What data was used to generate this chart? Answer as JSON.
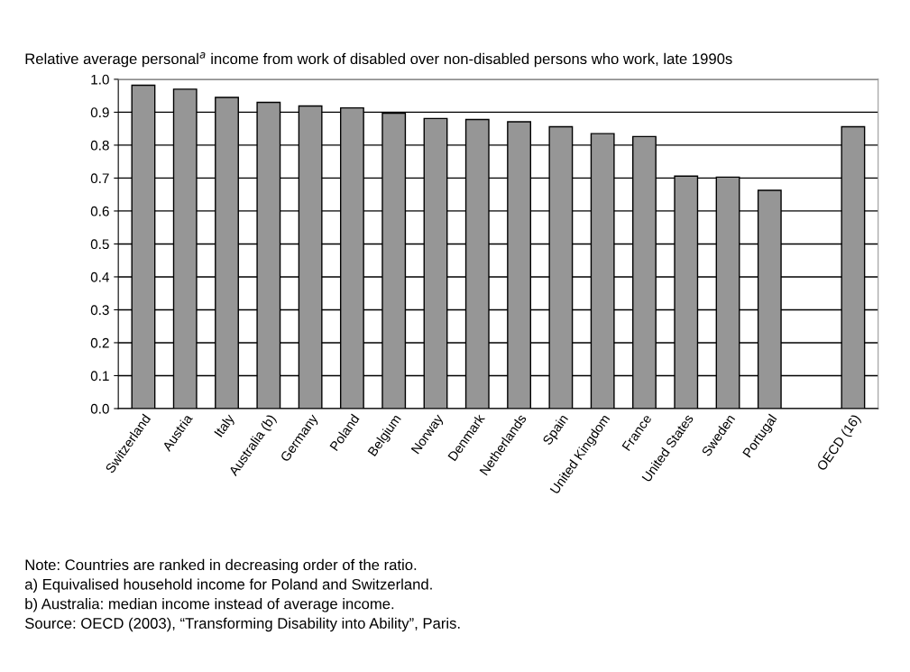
{
  "chart_data": {
    "type": "bar",
    "title": "Relative average personal$^{a}$ income from work of disabled over non-disabled persons who work, late 1990s",
    "categories": [
      "Switzerland",
      "Austria",
      "Italy",
      "Australia (b)",
      "Germany",
      "Poland",
      "Belgium",
      "Norway",
      "Denmark",
      "Netherlands",
      "Spain",
      "United Kingdom",
      "France",
      "United States",
      "Sweden",
      "Portugal",
      null,
      "OECD (16)"
    ],
    "values": [
      0.982,
      0.97,
      0.945,
      0.93,
      0.919,
      0.913,
      0.897,
      0.881,
      0.878,
      0.871,
      0.856,
      0.835,
      0.826,
      0.706,
      0.703,
      0.663,
      null,
      0.856
    ],
    "color": "#969696",
    "ylim": [
      0,
      1
    ],
    "yticks": [
      {
        "value": 0,
        "label": "0.0"
      },
      {
        "value": 0.1,
        "label": "0.1"
      },
      {
        "value": 0.2,
        "label": "0.2"
      },
      {
        "value": 0.3,
        "label": "0.3"
      },
      {
        "value": 0.4,
        "label": "0.4"
      },
      {
        "value": 0.5,
        "label": "0.5"
      },
      {
        "value": 0.6,
        "label": "0.6"
      },
      {
        "value": 0.7,
        "label": "0.7"
      },
      {
        "value": 0.8,
        "label": "0.8"
      },
      {
        "value": 0.9,
        "label": "0.9"
      },
      {
        "value": 1,
        "label": "1.0"
      }
    ],
    "grid": "y",
    "annotations": [
      "Note: Countries are ranked in decreasing order of the ratio.",
      "a) Equivalised household income for Poland and Switzerland.",
      "b) Australia: median income instead of average income.",
      "Source: OECD (2003), “Transforming Disability into Ability”, Paris."
    ]
  }
}
